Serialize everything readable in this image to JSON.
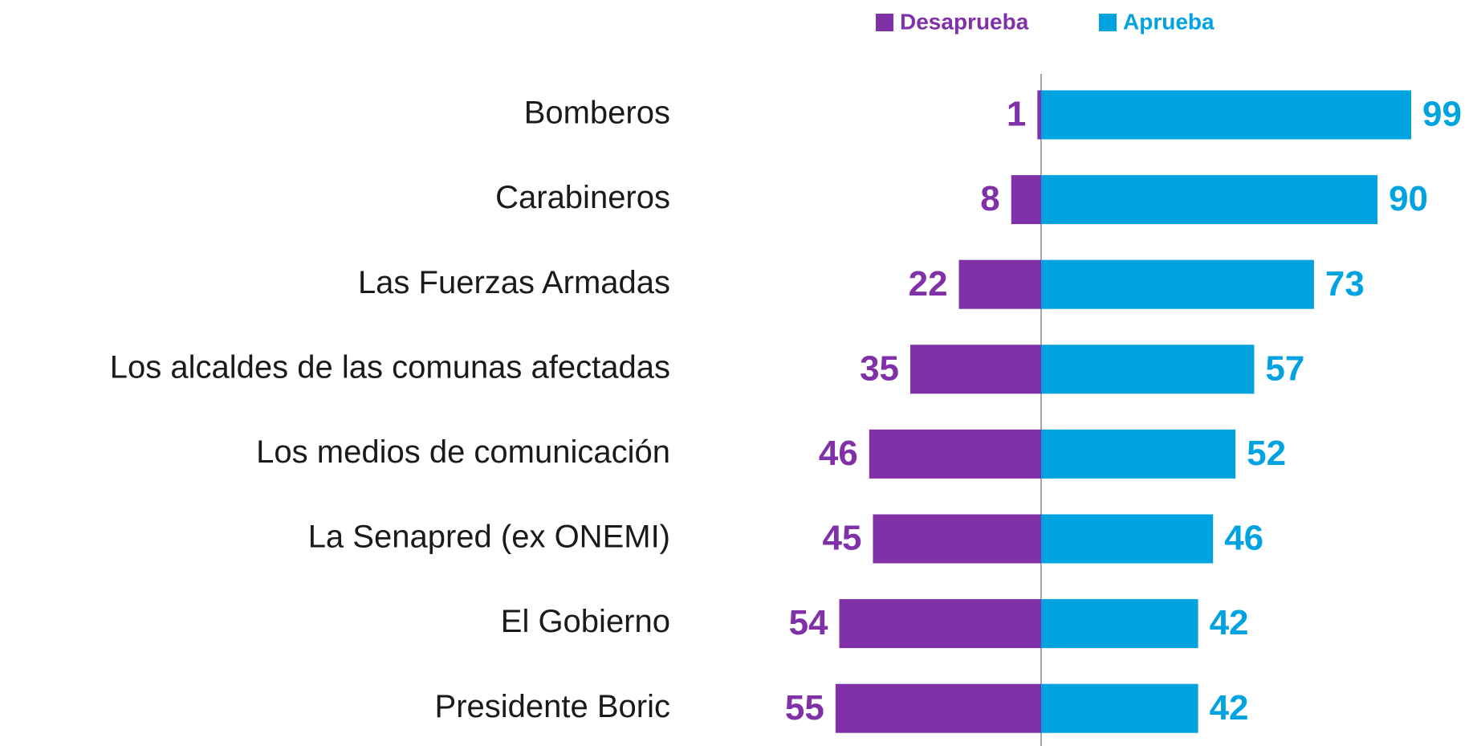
{
  "chart_data": {
    "type": "diverging_bar",
    "categories": [
      "Bomberos",
      "Carabineros",
      "Las Fuerzas Armadas",
      "Los alcaldes de las comunas afectadas",
      "Los medios de comunicación",
      "La Senapred (ex ONEMI)",
      "El Gobierno",
      "Presidente Boric"
    ],
    "series": [
      {
        "name": "Desaprueba",
        "color": "#8031a7",
        "values": [
          1,
          8,
          22,
          35,
          46,
          45,
          54,
          55
        ]
      },
      {
        "name": "Aprueba",
        "color": "#00a3e0",
        "values": [
          99,
          90,
          73,
          57,
          52,
          46,
          42,
          42
        ]
      }
    ]
  }
}
